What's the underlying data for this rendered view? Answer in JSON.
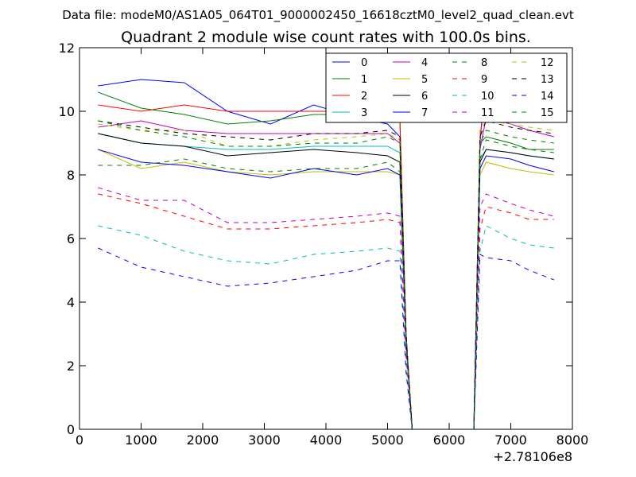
{
  "figure": {
    "suptitle": "Data file: modeM0/AS1A05_064T01_9000002450_16618cztM0_level2_quad_clean.evt"
  },
  "chart_data": {
    "type": "line",
    "title": "Quadrant 2 module wise count rates with 100.0s bins.",
    "xlabel": "",
    "ylabel": "",
    "x_offset_label": "+2.78106e8",
    "xlim": [
      0,
      8000
    ],
    "ylim": [
      0,
      12
    ],
    "xticks": [
      0,
      1000,
      2000,
      3000,
      4000,
      5000,
      6000,
      7000,
      8000
    ],
    "yticks": [
      0,
      2,
      4,
      6,
      8,
      10,
      12
    ],
    "grid": false,
    "legend_position": "top-right",
    "x": [
      300,
      1000,
      1700,
      2400,
      3100,
      3800,
      4500,
      5000,
      5200,
      5300,
      5400,
      6400,
      6500,
      6600,
      7000,
      7300,
      7700
    ],
    "series": [
      {
        "name": "0",
        "color": "#0000ff",
        "style": "solid",
        "values": [
          10.8,
          11.0,
          10.9,
          10.0,
          9.6,
          10.2,
          9.8,
          9.6,
          9.2,
          3.0,
          0.0,
          0.0,
          9.0,
          11.5,
          10.5,
          10.2,
          10.0
        ]
      },
      {
        "name": "1",
        "color": "#008000",
        "style": "solid",
        "values": [
          10.6,
          10.1,
          9.9,
          9.6,
          9.7,
          9.9,
          9.9,
          10.1,
          9.8,
          3.0,
          0.0,
          0.0,
          9.0,
          9.2,
          9.0,
          8.8,
          8.8
        ]
      },
      {
        "name": "2",
        "color": "#ff0000",
        "style": "solid",
        "values": [
          10.2,
          10.0,
          10.2,
          10.0,
          10.0,
          10.0,
          10.0,
          10.0,
          9.7,
          3.0,
          0.0,
          0.0,
          9.2,
          10.6,
          10.1,
          9.8,
          9.7
        ]
      },
      {
        "name": "3",
        "color": "#00bfbf",
        "style": "solid",
        "values": [
          9.3,
          9.0,
          8.9,
          8.8,
          8.8,
          8.9,
          8.9,
          8.9,
          8.7,
          2.8,
          0.0,
          0.0,
          8.5,
          8.8,
          8.7,
          8.6,
          8.5
        ]
      },
      {
        "name": "4",
        "color": "#bf00bf",
        "style": "solid",
        "values": [
          9.5,
          9.7,
          9.4,
          9.3,
          9.3,
          9.3,
          9.3,
          9.3,
          9.0,
          2.9,
          0.0,
          0.0,
          8.8,
          9.8,
          9.6,
          9.4,
          9.2
        ]
      },
      {
        "name": "5",
        "color": "#bfbf00",
        "style": "solid",
        "values": [
          8.8,
          8.2,
          8.4,
          8.1,
          8.0,
          8.1,
          8.1,
          8.1,
          8.0,
          2.7,
          0.0,
          0.0,
          8.0,
          8.4,
          8.2,
          8.1,
          8.0
        ]
      },
      {
        "name": "6",
        "color": "#000000",
        "style": "solid",
        "values": [
          9.3,
          9.0,
          8.9,
          8.6,
          8.7,
          8.8,
          8.7,
          8.6,
          8.4,
          2.8,
          0.0,
          0.0,
          8.4,
          8.8,
          8.7,
          8.6,
          8.5
        ]
      },
      {
        "name": "7",
        "color": "#0000ff",
        "style": "solid",
        "values": [
          8.8,
          8.4,
          8.3,
          8.1,
          7.9,
          8.2,
          8.0,
          8.2,
          8.0,
          2.7,
          0.0,
          0.0,
          8.2,
          8.6,
          8.5,
          8.3,
          8.1
        ]
      },
      {
        "name": "8",
        "color": "#008000",
        "style": "dashed",
        "values": [
          8.3,
          8.3,
          8.5,
          8.2,
          8.1,
          8.2,
          8.2,
          8.4,
          8.1,
          2.7,
          0.0,
          0.0,
          8.5,
          9.1,
          8.9,
          8.8,
          8.7
        ]
      },
      {
        "name": "9",
        "color": "#ff0000",
        "style": "dashed",
        "values": [
          7.4,
          7.1,
          6.7,
          6.3,
          6.3,
          6.4,
          6.5,
          6.6,
          6.5,
          2.3,
          0.0,
          0.0,
          6.3,
          7.0,
          6.8,
          6.6,
          6.6
        ]
      },
      {
        "name": "10",
        "color": "#00bfbf",
        "style": "dashed",
        "values": [
          6.4,
          6.1,
          5.6,
          5.3,
          5.2,
          5.5,
          5.6,
          5.7,
          5.6,
          2.0,
          0.0,
          0.0,
          5.6,
          6.4,
          6.0,
          5.8,
          5.7
        ]
      },
      {
        "name": "11",
        "color": "#bf00bf",
        "style": "dashed",
        "values": [
          7.6,
          7.2,
          7.2,
          6.5,
          6.5,
          6.6,
          6.7,
          6.8,
          6.7,
          2.4,
          0.0,
          0.0,
          7.0,
          7.4,
          7.1,
          6.9,
          6.7
        ]
      },
      {
        "name": "12",
        "color": "#bfbf00",
        "style": "dashed",
        "values": [
          9.6,
          9.4,
          9.4,
          8.9,
          8.9,
          9.1,
          9.2,
          9.3,
          9.1,
          3.0,
          0.0,
          0.0,
          9.4,
          9.7,
          9.6,
          9.5,
          9.4
        ]
      },
      {
        "name": "13",
        "color": "#000000",
        "style": "dashed",
        "values": [
          9.7,
          9.5,
          9.3,
          9.2,
          9.1,
          9.3,
          9.3,
          9.4,
          9.2,
          3.0,
          0.0,
          0.0,
          9.2,
          9.7,
          9.5,
          9.4,
          9.3
        ]
      },
      {
        "name": "14",
        "color": "#0000ff",
        "style": "dashed",
        "values": [
          5.7,
          5.1,
          4.8,
          4.5,
          4.6,
          4.8,
          5.0,
          5.3,
          5.3,
          1.8,
          0.0,
          0.0,
          5.5,
          5.4,
          5.3,
          5.0,
          4.7
        ]
      },
      {
        "name": "15",
        "color": "#008000",
        "style": "dashed",
        "values": [
          9.7,
          9.4,
          9.2,
          8.9,
          8.9,
          9.0,
          9.0,
          9.2,
          9.0,
          2.9,
          0.0,
          0.0,
          9.0,
          9.4,
          9.2,
          9.1,
          9.0
        ]
      }
    ]
  }
}
